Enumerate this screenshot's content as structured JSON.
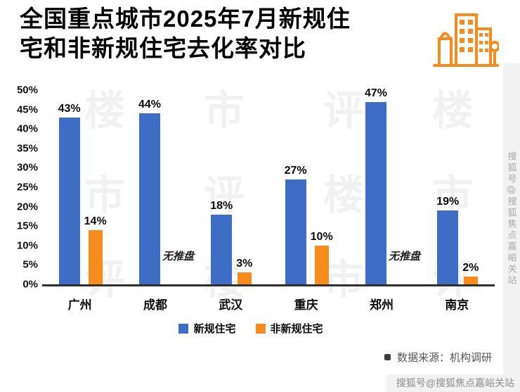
{
  "header": {
    "title_line1": "全国重点城市2025年7月新规住",
    "title_line2": "宅和非新规住宅去化率对比"
  },
  "chart_data": {
    "type": "bar",
    "title": "全国重点城市2025年7月新规住宅和非新规住宅去化率对比",
    "categories": [
      "广州",
      "成都",
      "武汉",
      "重庆",
      "郑州",
      "南京"
    ],
    "series": [
      {
        "name": "新规住宅",
        "color": "#3E6DC5",
        "values": [
          43,
          44,
          18,
          27,
          47,
          19
        ]
      },
      {
        "name": "非新规住宅",
        "color": "#F68B1E",
        "values": [
          14,
          null,
          3,
          10,
          null,
          2
        ]
      }
    ],
    "value_suffix": "%",
    "no_data_label": "无推盘",
    "no_data_categories": [
      "成都",
      "郑州"
    ],
    "ylim": [
      0,
      50
    ],
    "ytick_labels": [
      "50%",
      "45%",
      "40%",
      "35%",
      "30%",
      "25%",
      "20%",
      "15%",
      "10%",
      "5%",
      "0%"
    ],
    "xlabel": "",
    "ylabel": "",
    "grid": false,
    "legend_position": "bottom"
  },
  "legend": {
    "items": [
      {
        "label": "新规住宅",
        "color": "#3E6DC5"
      },
      {
        "label": "非新规住宅",
        "color": "#F68B1E"
      }
    ]
  },
  "source": {
    "text": "数据来源：机构调研"
  },
  "watermarks": {
    "right_vertical": "搜狐号@搜狐焦点嘉峪关站",
    "bottom_right": "搜狐号@搜狐焦点嘉峪关站",
    "background_text": "楼市评"
  },
  "colors": {
    "primary_blue": "#3E6DC5",
    "accent_orange": "#F68B1E",
    "axis": "#2E2E2E"
  }
}
